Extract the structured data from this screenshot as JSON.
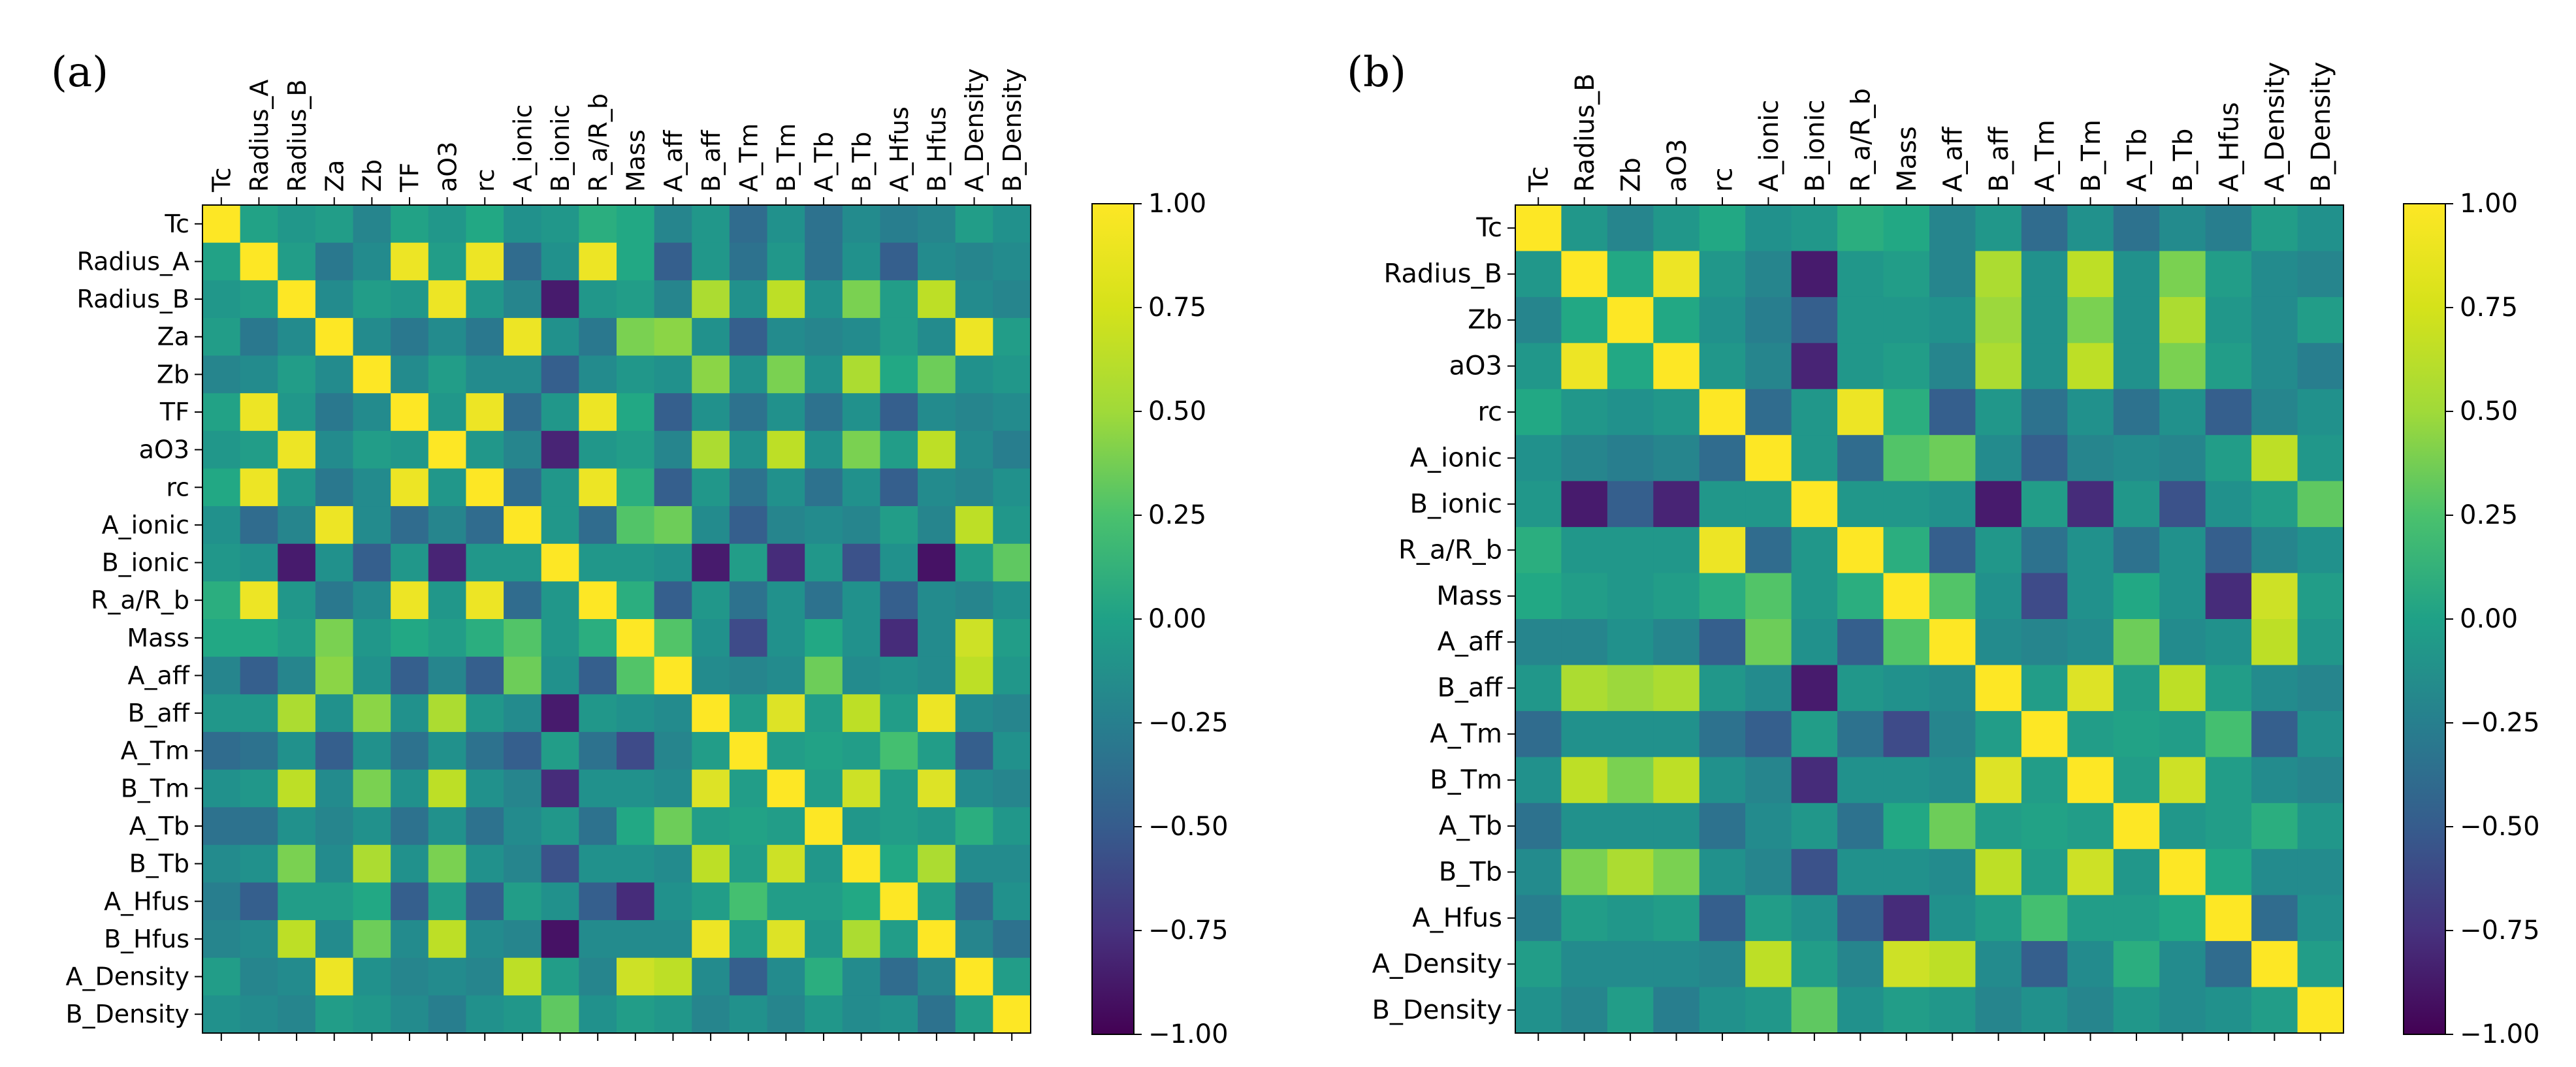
{
  "figure": {
    "panels": [
      "(a)",
      "(b)"
    ]
  },
  "chart_data": [
    {
      "type": "heatmap",
      "panel_label": "(a)",
      "title": "",
      "variables": [
        "Tc",
        "Radius_A",
        "Radius_B",
        "Za",
        "Zb",
        "TF",
        "aO3",
        "rc",
        "A_ionic",
        "B_ionic",
        "R_a/R_b",
        "Mass",
        "A_aff",
        "B_aff",
        "A_Tm",
        "B_Tm",
        "A_Tb",
        "B_Tb",
        "A_Hfus",
        "B_Hfus",
        "A_Density",
        "B_Density"
      ],
      "values": [
        [
          1.0,
          0.15,
          0.05,
          0.1,
          -0.1,
          0.15,
          0.05,
          0.2,
          0.0,
          0.05,
          0.25,
          0.2,
          -0.1,
          0.05,
          -0.3,
          0.0,
          -0.25,
          -0.05,
          -0.15,
          -0.1,
          0.1,
          0.0
        ],
        [
          0.15,
          1.0,
          0.1,
          -0.2,
          -0.05,
          0.95,
          0.1,
          0.95,
          -0.3,
          0.0,
          0.95,
          0.2,
          -0.4,
          0.05,
          -0.25,
          0.05,
          -0.25,
          0.0,
          -0.4,
          -0.05,
          -0.1,
          -0.05
        ],
        [
          0.05,
          0.1,
          1.0,
          -0.05,
          0.1,
          0.05,
          0.95,
          0.05,
          -0.1,
          -0.85,
          0.05,
          0.1,
          -0.1,
          0.75,
          0.0,
          0.8,
          0.0,
          0.6,
          0.1,
          0.8,
          -0.05,
          -0.1
        ],
        [
          0.1,
          -0.2,
          -0.05,
          1.0,
          -0.05,
          -0.2,
          -0.05,
          -0.2,
          0.95,
          0.0,
          -0.2,
          0.6,
          0.65,
          0.0,
          -0.4,
          -0.05,
          -0.1,
          -0.05,
          0.1,
          -0.05,
          0.95,
          0.1
        ],
        [
          -0.1,
          -0.05,
          0.1,
          -0.05,
          1.0,
          -0.05,
          0.1,
          -0.05,
          -0.05,
          -0.4,
          -0.05,
          0.05,
          0.0,
          0.65,
          0.0,
          0.6,
          0.0,
          0.75,
          0.2,
          0.55,
          0.0,
          0.05
        ],
        [
          0.15,
          0.95,
          0.05,
          -0.2,
          -0.05,
          1.0,
          0.05,
          0.95,
          -0.3,
          0.05,
          0.95,
          0.2,
          -0.4,
          0.0,
          -0.25,
          0.0,
          -0.25,
          0.0,
          -0.4,
          -0.05,
          -0.1,
          -0.05
        ],
        [
          0.05,
          0.1,
          0.95,
          -0.05,
          0.1,
          0.05,
          1.0,
          0.05,
          -0.1,
          -0.8,
          0.05,
          0.1,
          -0.1,
          0.75,
          0.0,
          0.8,
          0.0,
          0.6,
          0.1,
          0.8,
          -0.05,
          -0.15
        ],
        [
          0.2,
          0.95,
          0.05,
          -0.2,
          -0.05,
          0.95,
          0.05,
          1.0,
          -0.3,
          0.05,
          0.95,
          0.25,
          -0.4,
          0.05,
          -0.25,
          0.0,
          -0.25,
          0.0,
          -0.4,
          -0.05,
          -0.1,
          0.0
        ],
        [
          0.0,
          -0.3,
          -0.1,
          0.95,
          -0.05,
          -0.3,
          -0.1,
          -0.3,
          1.0,
          0.05,
          -0.3,
          0.45,
          0.55,
          -0.05,
          -0.4,
          -0.1,
          -0.05,
          -0.1,
          0.1,
          -0.1,
          0.8,
          0.05
        ],
        [
          0.05,
          0.0,
          -0.85,
          0.0,
          -0.4,
          0.05,
          -0.8,
          0.05,
          0.05,
          1.0,
          0.05,
          0.05,
          0.0,
          -0.85,
          0.1,
          -0.75,
          0.05,
          -0.5,
          0.0,
          -0.9,
          0.1,
          0.5
        ],
        [
          0.25,
          0.95,
          0.05,
          -0.2,
          -0.05,
          0.95,
          0.05,
          0.95,
          -0.3,
          0.05,
          1.0,
          0.25,
          -0.4,
          0.05,
          -0.25,
          0.0,
          -0.25,
          0.0,
          -0.4,
          -0.05,
          -0.1,
          0.0
        ],
        [
          0.2,
          0.2,
          0.1,
          0.6,
          0.05,
          0.2,
          0.1,
          0.25,
          0.45,
          0.05,
          0.25,
          1.0,
          0.45,
          0.0,
          -0.55,
          0.0,
          0.2,
          0.0,
          -0.75,
          -0.05,
          0.85,
          0.1
        ],
        [
          -0.1,
          -0.4,
          -0.1,
          0.65,
          0.0,
          -0.4,
          -0.1,
          -0.4,
          0.55,
          0.0,
          -0.4,
          0.45,
          1.0,
          -0.05,
          -0.1,
          -0.05,
          0.55,
          -0.05,
          0.0,
          -0.05,
          0.8,
          0.05
        ],
        [
          0.05,
          0.05,
          0.75,
          0.0,
          0.65,
          0.0,
          0.75,
          0.05,
          -0.05,
          -0.85,
          0.05,
          0.0,
          -0.05,
          1.0,
          0.1,
          0.9,
          0.1,
          0.8,
          0.1,
          0.95,
          -0.05,
          -0.1
        ],
        [
          -0.3,
          -0.25,
          0.0,
          -0.4,
          0.0,
          -0.25,
          0.0,
          -0.25,
          -0.4,
          0.1,
          -0.25,
          -0.55,
          -0.1,
          0.1,
          1.0,
          0.1,
          0.15,
          0.1,
          0.4,
          0.1,
          -0.4,
          0.0
        ],
        [
          0.0,
          0.05,
          0.8,
          -0.05,
          0.6,
          0.0,
          0.8,
          0.0,
          -0.1,
          -0.75,
          0.0,
          0.0,
          -0.05,
          0.9,
          0.1,
          1.0,
          0.1,
          0.85,
          0.1,
          0.9,
          -0.05,
          -0.1
        ],
        [
          -0.25,
          -0.25,
          0.0,
          -0.1,
          0.0,
          -0.25,
          0.0,
          -0.25,
          -0.05,
          0.05,
          -0.25,
          0.2,
          0.55,
          0.1,
          0.15,
          0.1,
          1.0,
          0.05,
          0.1,
          0.05,
          0.25,
          0.05
        ],
        [
          -0.05,
          0.0,
          0.6,
          -0.05,
          0.75,
          0.0,
          0.6,
          0.0,
          -0.1,
          -0.5,
          0.0,
          0.0,
          -0.05,
          0.8,
          0.1,
          0.85,
          0.05,
          1.0,
          0.2,
          0.75,
          -0.05,
          -0.05
        ],
        [
          -0.15,
          -0.4,
          0.1,
          0.1,
          0.2,
          -0.4,
          0.1,
          -0.4,
          0.1,
          0.0,
          -0.4,
          -0.75,
          0.0,
          0.1,
          0.4,
          0.1,
          0.1,
          0.2,
          1.0,
          0.1,
          -0.3,
          0.0
        ],
        [
          -0.1,
          -0.05,
          0.8,
          -0.05,
          0.55,
          -0.05,
          0.8,
          -0.05,
          -0.1,
          -0.9,
          -0.05,
          -0.05,
          -0.05,
          0.95,
          0.1,
          0.9,
          0.05,
          0.75,
          0.1,
          1.0,
          -0.1,
          -0.25
        ],
        [
          0.1,
          -0.1,
          -0.05,
          0.95,
          0.0,
          -0.1,
          -0.05,
          -0.1,
          0.8,
          0.1,
          -0.1,
          0.85,
          0.8,
          -0.05,
          -0.4,
          -0.05,
          0.25,
          -0.05,
          -0.3,
          -0.1,
          1.0,
          0.1
        ],
        [
          0.0,
          -0.05,
          -0.1,
          0.1,
          0.05,
          -0.05,
          -0.15,
          0.0,
          0.05,
          0.5,
          0.0,
          0.1,
          0.05,
          -0.1,
          0.0,
          -0.1,
          0.05,
          -0.05,
          0.0,
          -0.25,
          0.1,
          1.0
        ]
      ],
      "colorbar": {
        "ticks": [
          "1.00",
          "0.75",
          "0.50",
          "0.25",
          "0.00",
          "−0.25",
          "−0.50",
          "−0.75",
          "−1.00"
        ],
        "range": [
          -1,
          1
        ],
        "colormap": "viridis"
      }
    },
    {
      "type": "heatmap",
      "panel_label": "(b)",
      "title": "",
      "variables": [
        "Tc",
        "Radius_B",
        "Zb",
        "aO3",
        "rc",
        "A_ionic",
        "B_ionic",
        "R_a/R_b",
        "Mass",
        "A_aff",
        "B_aff",
        "A_Tm",
        "B_Tm",
        "A_Tb",
        "B_Tb",
        "A_Hfus",
        "A_Density",
        "B_Density"
      ],
      "values": [
        [
          1.0,
          0.05,
          -0.1,
          0.05,
          0.2,
          0.0,
          0.05,
          0.25,
          0.2,
          -0.1,
          0.05,
          -0.3,
          0.0,
          -0.25,
          -0.05,
          -0.15,
          0.1,
          0.0
        ],
        [
          0.05,
          1.0,
          0.2,
          0.95,
          0.05,
          -0.1,
          -0.85,
          0.05,
          0.1,
          -0.1,
          0.75,
          0.0,
          0.8,
          0.0,
          0.6,
          0.1,
          -0.05,
          -0.1
        ],
        [
          -0.1,
          0.2,
          1.0,
          0.2,
          0.0,
          -0.15,
          -0.4,
          0.05,
          0.05,
          0.0,
          0.7,
          0.0,
          0.6,
          0.0,
          0.75,
          0.05,
          -0.05,
          0.1
        ],
        [
          0.05,
          0.95,
          0.2,
          1.0,
          0.05,
          -0.1,
          -0.8,
          0.05,
          0.1,
          -0.1,
          0.75,
          0.0,
          0.8,
          0.0,
          0.6,
          0.1,
          -0.05,
          -0.15
        ],
        [
          0.2,
          0.05,
          0.0,
          0.05,
          1.0,
          -0.3,
          0.05,
          0.95,
          0.25,
          -0.4,
          0.05,
          -0.25,
          0.0,
          -0.25,
          0.0,
          -0.4,
          -0.1,
          0.0
        ],
        [
          0.0,
          -0.1,
          -0.15,
          -0.1,
          -0.3,
          1.0,
          0.05,
          -0.3,
          0.45,
          0.55,
          -0.05,
          -0.4,
          -0.1,
          -0.05,
          -0.1,
          0.1,
          0.8,
          0.05
        ],
        [
          0.05,
          -0.85,
          -0.4,
          -0.8,
          0.05,
          0.05,
          1.0,
          0.05,
          0.05,
          0.0,
          -0.85,
          0.1,
          -0.75,
          0.05,
          -0.5,
          0.0,
          0.1,
          0.5
        ],
        [
          0.25,
          0.05,
          0.05,
          0.05,
          0.95,
          -0.3,
          0.05,
          1.0,
          0.25,
          -0.4,
          0.05,
          -0.25,
          0.0,
          -0.25,
          0.0,
          -0.4,
          -0.1,
          0.0
        ],
        [
          0.2,
          0.1,
          0.05,
          0.1,
          0.25,
          0.45,
          0.05,
          0.25,
          1.0,
          0.45,
          0.0,
          -0.55,
          0.0,
          0.2,
          0.0,
          -0.75,
          0.85,
          0.1
        ],
        [
          -0.1,
          -0.1,
          0.0,
          -0.1,
          -0.4,
          0.55,
          0.0,
          -0.4,
          0.45,
          1.0,
          -0.05,
          -0.1,
          -0.05,
          0.55,
          -0.05,
          0.0,
          0.8,
          0.05
        ],
        [
          0.05,
          0.75,
          0.7,
          0.75,
          0.05,
          -0.05,
          -0.85,
          0.05,
          0.0,
          -0.05,
          1.0,
          0.1,
          0.9,
          0.1,
          0.8,
          0.1,
          -0.05,
          -0.1
        ],
        [
          -0.3,
          0.0,
          0.0,
          0.0,
          -0.25,
          -0.4,
          0.1,
          -0.25,
          -0.55,
          -0.1,
          0.1,
          1.0,
          0.1,
          0.15,
          0.1,
          0.4,
          -0.4,
          0.0
        ],
        [
          0.0,
          0.8,
          0.6,
          0.8,
          0.0,
          -0.1,
          -0.75,
          0.0,
          0.0,
          -0.05,
          0.9,
          0.1,
          1.0,
          0.1,
          0.85,
          0.1,
          -0.05,
          -0.1
        ],
        [
          -0.25,
          0.0,
          0.0,
          0.0,
          -0.25,
          -0.05,
          0.05,
          -0.25,
          0.2,
          0.55,
          0.1,
          0.15,
          0.1,
          1.0,
          0.05,
          0.1,
          0.25,
          0.05
        ],
        [
          -0.05,
          0.6,
          0.75,
          0.6,
          0.0,
          -0.1,
          -0.5,
          0.0,
          0.0,
          -0.05,
          0.8,
          0.1,
          0.85,
          0.05,
          1.0,
          0.2,
          -0.05,
          -0.05
        ],
        [
          -0.15,
          0.1,
          0.05,
          0.1,
          -0.4,
          0.1,
          0.0,
          -0.4,
          -0.75,
          0.0,
          0.1,
          0.4,
          0.1,
          0.1,
          0.2,
          1.0,
          -0.3,
          0.0
        ],
        [
          0.1,
          -0.05,
          -0.05,
          -0.05,
          -0.1,
          0.8,
          0.1,
          -0.1,
          0.85,
          0.8,
          -0.05,
          -0.4,
          -0.05,
          0.25,
          -0.05,
          -0.3,
          1.0,
          0.1
        ],
        [
          0.0,
          -0.1,
          0.1,
          -0.15,
          0.0,
          0.05,
          0.5,
          0.0,
          0.1,
          0.05,
          -0.1,
          0.0,
          -0.1,
          0.05,
          -0.05,
          0.0,
          0.1,
          1.0
        ]
      ],
      "colorbar": {
        "ticks": [
          "1.00",
          "0.75",
          "0.50",
          "0.25",
          "0.00",
          "−0.25",
          "−0.50",
          "−0.75",
          "−1.00"
        ],
        "range": [
          -1,
          1
        ],
        "colormap": "viridis"
      }
    }
  ]
}
